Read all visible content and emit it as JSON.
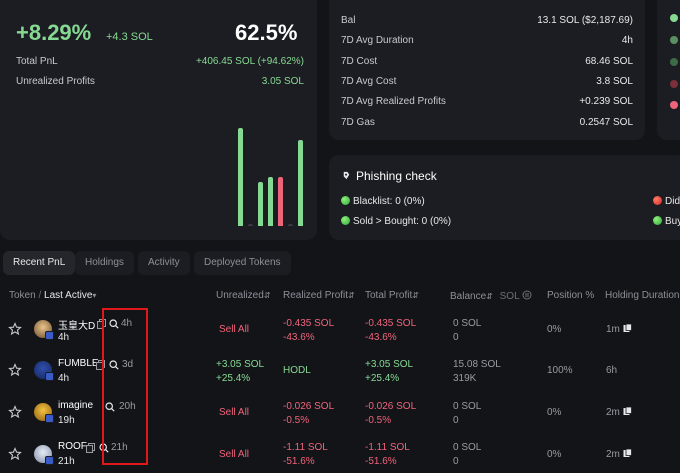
{
  "pnl": {
    "pct": "+8.29%",
    "sol": "+4.3 SOL",
    "win_rate": "62.5%",
    "total_pnl_label": "Total PnL",
    "total_pnl_value": "+406.45 SOL (+94.62%)",
    "unrealized_label": "Unrealized Profits",
    "unrealized_value": "3.05 SOL"
  },
  "stats": [
    {
      "label": "Bal",
      "value": "13.1 SOL ($2,187.69)",
      "tone": "normal"
    },
    {
      "label": "7D Avg Duration",
      "value": "4h",
      "tone": "normal"
    },
    {
      "label": "7D Cost",
      "value": "68.46 SOL",
      "tone": "normal"
    },
    {
      "label": "7D Avg Cost",
      "value": "3.8 SOL",
      "tone": "normal"
    },
    {
      "label": "7D Avg Realized Profits",
      "value": "+0.239 SOL",
      "tone": "green"
    },
    {
      "label": "7D Gas",
      "value": "0.2547 SOL",
      "tone": "normal"
    }
  ],
  "phishing": {
    "title": "Phishing check",
    "blacklist": "Blacklist: 0 (0%)",
    "sold_bought": "Sold > Bought: 0 (0%)",
    "didi": "Didi",
    "buy": "Buy"
  },
  "tabs": [
    "Recent PnL",
    "Holdings",
    "Activity",
    "Deployed Tokens"
  ],
  "columns": {
    "token": "Token",
    "sep": "/",
    "last_active": "Last Active",
    "unrealized": "Unrealized",
    "realized": "Realized Profit",
    "total": "Total Profit",
    "balance": "Balance",
    "balance_unit": "SOL",
    "position": "Position %",
    "holding": "Holding Duration"
  },
  "rows": [
    {
      "name": "玉皇大D",
      "age": "4h",
      "last": "4h",
      "unrealized": "Sell All",
      "unrealized2": "",
      "realized": "-0.435 SOL",
      "realized2": "-43.6%",
      "total": "-0.435 SOL",
      "total2": "-43.6%",
      "balance": "0 SOL",
      "balance2": "0",
      "position": "0%",
      "holding": "1m",
      "tone": "red"
    },
    {
      "name": "FUMBLE",
      "age": "4h",
      "last": "3d",
      "unrealized": "+3.05 SOL",
      "unrealized2": "+25.4%",
      "realized": "HODL",
      "realized2": "",
      "total": "+3.05 SOL",
      "total2": "+25.4%",
      "balance": "15.08 SOL",
      "balance2": "319K",
      "position": "100%",
      "holding": "6h",
      "tone": "green"
    },
    {
      "name": "imagine",
      "age": "19h",
      "last": "20h",
      "unrealized": "Sell All",
      "unrealized2": "",
      "realized": "-0.026 SOL",
      "realized2": "-0.5%",
      "total": "-0.026 SOL",
      "total2": "-0.5%",
      "balance": "0 SOL",
      "balance2": "0",
      "position": "0%",
      "holding": "2m",
      "tone": "red"
    },
    {
      "name": "ROOF",
      "age": "21h",
      "last": "21h",
      "unrealized": "Sell All",
      "unrealized2": "",
      "realized": "-1.11 SOL",
      "realized2": "-51.6%",
      "total": "-1.11 SOL",
      "total2": "-51.6%",
      "balance": "0 SOL",
      "balance2": "0",
      "position": "0%",
      "holding": "2m",
      "tone": "red"
    }
  ],
  "bars": [
    {
      "value": 1.0,
      "color": "#86d993"
    },
    {
      "value": 0.02,
      "color": "#3a3b42"
    },
    {
      "value": 0.45,
      "color": "#86d993"
    },
    {
      "value": 0.5,
      "color": "#86d993"
    },
    {
      "value": 0.5,
      "color": "#f0647b"
    },
    {
      "value": 0.02,
      "color": "#3a3b42"
    },
    {
      "value": 0.88,
      "color": "#86d993"
    }
  ],
  "dist_colors": [
    "#86d993",
    "#5a8f62",
    "#3e6a48",
    "#7a2f3a",
    "#f0647b"
  ],
  "icons": {
    "star": "star-icon",
    "copy": "copy-icon",
    "search": "search-icon",
    "phish": "hook-icon"
  }
}
